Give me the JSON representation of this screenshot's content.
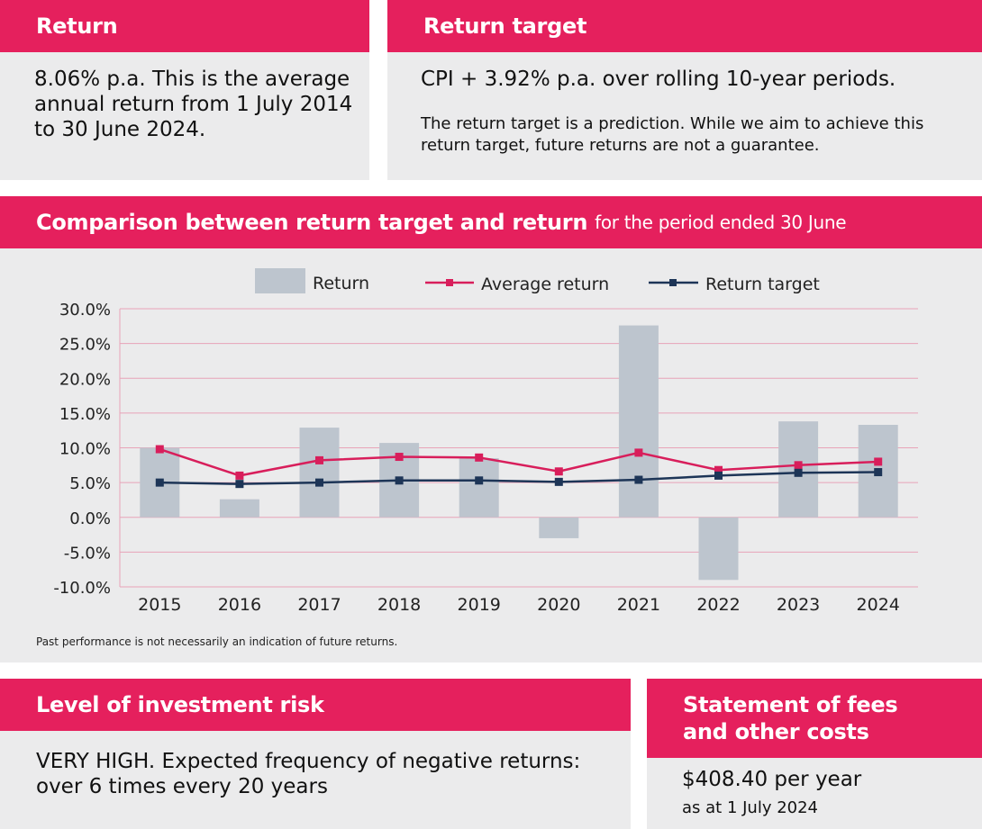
{
  "return_box": {
    "title": "Return",
    "text": "8.06% p.a. This is the average annual return from 1 July 2014 to 30 June 2024."
  },
  "target_box": {
    "title": "Return target",
    "text": "CPI + 3.92% p.a. over rolling 10-year periods.",
    "note": "The return target is a prediction. While we aim to achieve this return target, future returns are not a guarantee."
  },
  "comparison": {
    "title": "Comparison between return target and return",
    "subtitle": "for the period ended 30 June",
    "footnote": "Past performance is not necessarily an indication of future returns."
  },
  "risk_box": {
    "title": "Level of investment risk",
    "text": "VERY HIGH. Expected frequency of negative returns: over 6 times every 20 years"
  },
  "fees_box": {
    "title_line1": "Statement of fees",
    "title_line2": "and other costs",
    "amount": "$408.40 per year",
    "as_at": "as at 1 July 2024"
  },
  "colors": {
    "brand": "#e5205d",
    "panel": "#ebebec",
    "bar": "#bdc5ce",
    "average_line": "#d81e5b",
    "target_line": "#1d3557"
  },
  "chart_data": {
    "type": "bar",
    "title": "Comparison between return target and return",
    "subtitle": "for the period ended 30 June",
    "categories": [
      "2015",
      "2016",
      "2017",
      "2018",
      "2019",
      "2020",
      "2021",
      "2022",
      "2023",
      "2024"
    ],
    "ylim": [
      -10,
      30
    ],
    "yticks": [
      -10,
      -5,
      0,
      5,
      10,
      15,
      20,
      25,
      30
    ],
    "ytick_labels": [
      "-10.0%",
      "-5.0%",
      "0.0%",
      "5.0%",
      "10.0%",
      "15.0%",
      "20.0%",
      "25.0%",
      "30.0%"
    ],
    "legend": [
      "Return",
      "Average return",
      "Return target"
    ],
    "legend_position": "top",
    "series": [
      {
        "name": "Return",
        "kind": "bar",
        "values": [
          10.0,
          2.6,
          12.9,
          10.7,
          8.5,
          -3.0,
          27.6,
          -9.0,
          13.8,
          13.3
        ]
      },
      {
        "name": "Average return",
        "kind": "line",
        "values": [
          9.8,
          6.0,
          8.2,
          8.7,
          8.6,
          6.6,
          9.3,
          6.8,
          7.5,
          8.0
        ]
      },
      {
        "name": "Return target",
        "kind": "line",
        "values": [
          5.0,
          4.8,
          5.0,
          5.3,
          5.3,
          5.1,
          5.4,
          6.0,
          6.4,
          6.5
        ]
      }
    ]
  }
}
